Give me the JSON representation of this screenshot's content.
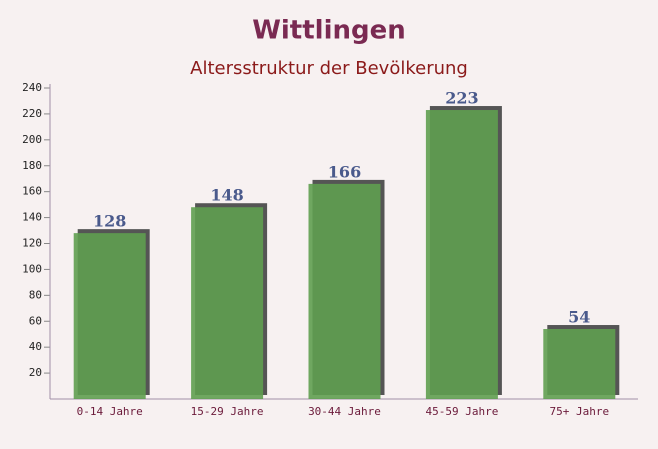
{
  "chart_data": {
    "type": "bar",
    "title": "Wittlingen",
    "subtitle": "Altersstruktur der Bevölkerung",
    "categories": [
      "0-14 Jahre",
      "15-29 Jahre",
      "30-44 Jahre",
      "45-59 Jahre",
      "75+ Jahre"
    ],
    "values": [
      128,
      148,
      166,
      223,
      54
    ],
    "color": "#5f9e50",
    "ylim": [
      0,
      240
    ],
    "yticks": [
      20,
      40,
      60,
      80,
      100,
      120,
      140,
      160,
      180,
      200,
      220,
      240
    ]
  }
}
